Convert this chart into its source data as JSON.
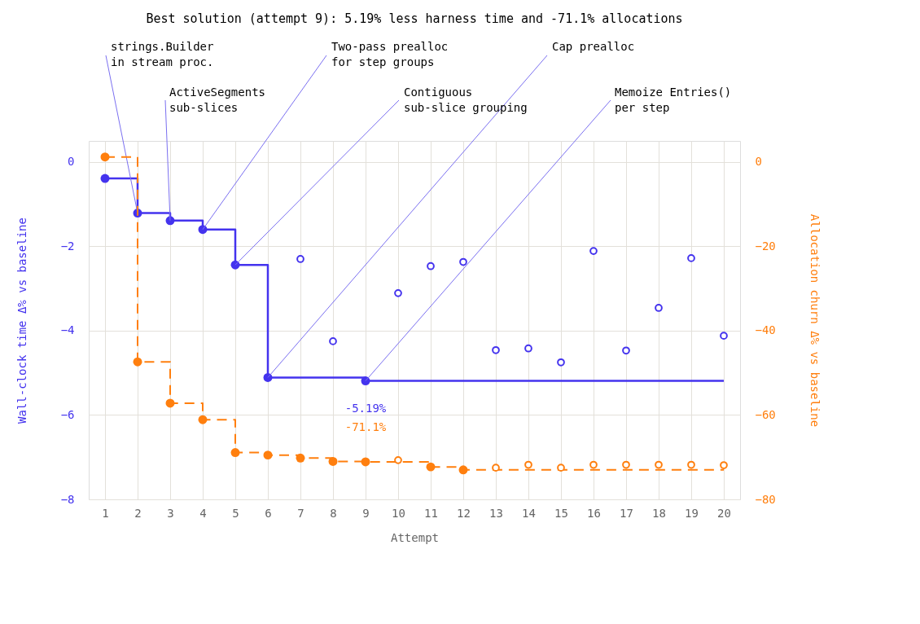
{
  "chart_data": {
    "type": "step",
    "title": "Best solution (attempt 9): 5.19% less harness time and -71.1% allocations",
    "xlabel": "Attempt",
    "ylabel": "Wall-clock time Δ% vs baseline",
    "y2label": "Allocation churn Δ% vs baseline",
    "x": [
      1,
      2,
      3,
      4,
      5,
      6,
      7,
      8,
      9,
      10,
      11,
      12,
      13,
      14,
      15,
      16,
      17,
      18,
      19,
      20
    ],
    "xlim": [
      0.5,
      20.5
    ],
    "xticks": [
      1,
      2,
      3,
      4,
      5,
      6,
      7,
      8,
      9,
      10,
      11,
      12,
      13,
      14,
      15,
      16,
      17,
      18,
      19,
      20
    ],
    "ylim": [
      -8,
      0.5
    ],
    "yticks": [
      -8,
      -6,
      -4,
      -2,
      0
    ],
    "y2lim": [
      -80,
      5
    ],
    "y2ticks": [
      -80,
      -60,
      -40,
      -20,
      0
    ],
    "grid": true,
    "series": [
      {
        "color": "#4433ee",
        "marker": "none",
        "values": [
          -0.39,
          -1.21,
          -1.39,
          -1.6,
          -2.44,
          -5.11,
          -5.11,
          -5.11,
          -5.19,
          -5.19,
          -5.19,
          -5.19,
          -5.19,
          -5.19,
          -5.19,
          -5.19,
          -5.19,
          -5.19,
          -5.19,
          -5.19
        ]
      },
      {
        "type": "scatter",
        "color": "#4433ee",
        "marker": "circle",
        "values": [
          -0.39,
          -1.21,
          -1.39,
          -1.6,
          -2.44,
          -5.11,
          null,
          null,
          -5.19,
          null,
          null,
          null,
          null,
          null,
          null,
          null,
          null,
          null,
          null,
          null
        ],
        "value_labels": [
          null,
          null,
          null,
          null,
          null,
          null,
          null,
          null,
          "-5.19%",
          null,
          null,
          null,
          null,
          null,
          null,
          null,
          null,
          null,
          null,
          null
        ]
      },
      {
        "type": "scatter",
        "color": "#4433ee",
        "marker": "circle",
        "values": [
          null,
          null,
          null,
          null,
          null,
          null,
          -2.3,
          -4.25,
          null,
          -3.11,
          -2.47,
          -2.37,
          -4.46,
          -4.42,
          -4.75,
          -2.11,
          -4.47,
          -3.46,
          -2.28,
          -4.12
        ]
      },
      {
        "color": "#ff7f0e",
        "axis": "y2",
        "marker": "none",
        "line_style": "dashed",
        "values": [
          1.2,
          -47.4,
          -57.2,
          -61.1,
          -68.9,
          -69.5,
          -70.2,
          -71.0,
          -71.1,
          -71.1,
          -72.3,
          -73.0,
          -73.0,
          -73.0,
          -73.0,
          -73.0,
          -73.0,
          -73.0,
          -73.0,
          -73.0
        ]
      },
      {
        "type": "scatter",
        "color": "#ff7f0e",
        "axis": "y2",
        "marker": "circle",
        "values": [
          1.2,
          -47.4,
          -57.2,
          -61.1,
          -68.9,
          -69.5,
          -70.2,
          -71.0,
          -71.1,
          null,
          -72.3,
          -73.0,
          null,
          null,
          null,
          null,
          null,
          null,
          null,
          null
        ],
        "value_labels": [
          null,
          null,
          null,
          null,
          null,
          null,
          null,
          null,
          "-71.1%",
          null,
          null,
          null,
          null,
          null,
          null,
          null,
          null,
          null,
          null,
          null
        ]
      },
      {
        "type": "scatter",
        "color": "#ff7f0e",
        "axis": "y2",
        "marker": "circle",
        "values": [
          null,
          null,
          null,
          null,
          null,
          null,
          null,
          null,
          null,
          -70.7,
          null,
          null,
          -72.5,
          -71.8,
          -72.5,
          -71.8,
          -71.8,
          -71.8,
          -71.8,
          -71.9
        ]
      }
    ],
    "annotations": [
      {
        "text": "strings.Builder\nin stream proc.",
        "x": 2,
        "y": -1.21
      },
      {
        "text": "ActiveSegments\nsub-slices",
        "x": 3,
        "y": -1.39
      },
      {
        "text": "Two-pass prealloc\nfor step groups",
        "x": 4,
        "y": -1.6
      },
      {
        "text": "Contiguous\nsub-slice grouping",
        "x": 5,
        "y": -2.44
      },
      {
        "text": "Cap prealloc",
        "x": 6,
        "y": -5.11
      },
      {
        "text": "Memoize Entries()\nper step",
        "x": 9,
        "y": -5.19
      }
    ]
  }
}
